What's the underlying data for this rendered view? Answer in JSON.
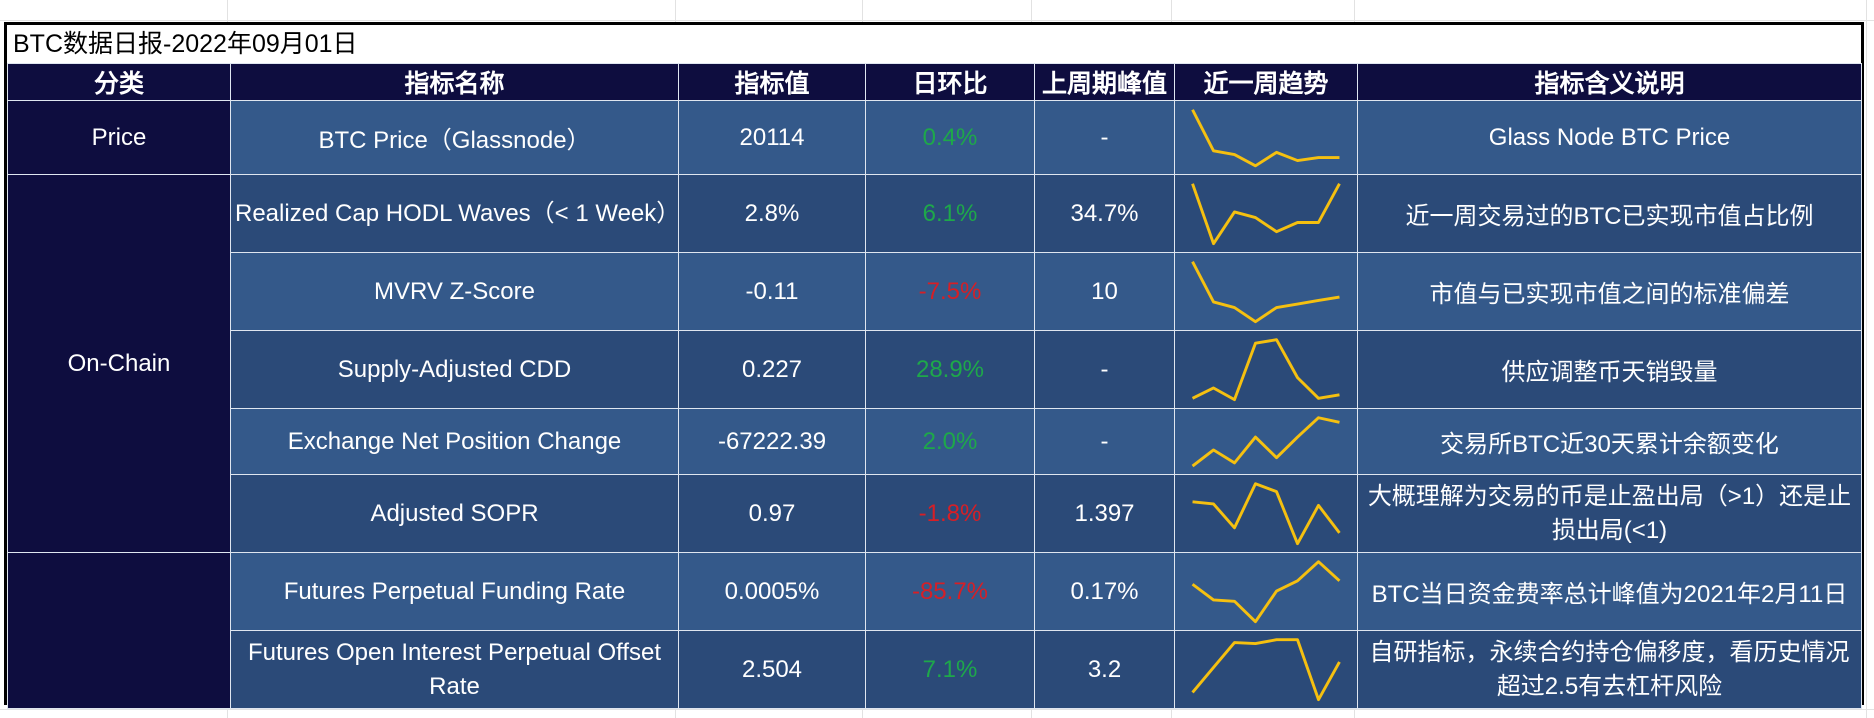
{
  "title": "BTC数据日报-2022年09月01日",
  "headers": {
    "category": "分类",
    "name": "指标名称",
    "value": "指标值",
    "dod": "日环比",
    "peak": "上周期峰值",
    "trend": "近一周趋势",
    "desc": "指标含义说明"
  },
  "categories": {
    "price": "Price",
    "onchain": "On-Chain",
    "futures": ""
  },
  "rows": [
    {
      "name": "BTC Price（Glassnode）",
      "value": "20114",
      "dod": "0.4%",
      "dod_sign": "pos",
      "peak": "-",
      "desc": "Glass Node BTC Price",
      "trend": [
        10,
        4.5,
        4,
        2.5,
        4.3,
        3.2,
        3.6,
        3.6
      ]
    },
    {
      "name": "Realized Cap HODL Waves（< 1 Week）",
      "value": "2.8%",
      "dod": "6.1%",
      "dod_sign": "pos",
      "peak": "34.7%",
      "desc": "近一周交易过的BTC已实现市值占比例",
      "trend": [
        9.5,
        1,
        5.5,
        4.7,
        2.7,
        4,
        4,
        9.5
      ]
    },
    {
      "name": "MVRV Z-Score",
      "value": "-0.11",
      "dod": "-7.5%",
      "dod_sign": "neg",
      "peak": "10",
      "desc": "市值与已实现市值之间的标准偏差",
      "trend": [
        9.5,
        3.8,
        3.0,
        1.0,
        3.0,
        3.5,
        4.0,
        4.5
      ]
    },
    {
      "name": "Supply-Adjusted CDD",
      "value": "0.227",
      "dod": "28.9%",
      "dod_sign": "pos",
      "peak": "-",
      "desc": "供应调整币天销毁量",
      "trend": [
        1.5,
        3,
        1.3,
        9.5,
        10,
        4.5,
        1.5,
        2
      ]
    },
    {
      "name": "Exchange Net Position Change",
      "value": "-67222.39",
      "dod": "2.0%",
      "dod_sign": "pos",
      "peak": "-",
      "desc": "交易所BTC近30天累计余额变化",
      "trend": [
        1,
        3.5,
        1.5,
        5.5,
        2.3,
        5.5,
        8.5,
        7.8
      ]
    },
    {
      "name": "Adjusted SOPR",
      "value": "0.97",
      "dod": "-1.8%",
      "dod_sign": "neg",
      "peak": "1.397",
      "desc": "大概理解为交易的币是止盈出局（>1）还是止损出局(<1)",
      "trend": [
        7.3,
        7.0,
        3.7,
        9.8,
        8.7,
        1.5,
        6.8,
        3
      ]
    },
    {
      "name": "Futures Perpetual Funding Rate",
      "value": "0.0005%",
      "dod": "-85.7%",
      "dod_sign": "neg",
      "peak": "0.17%",
      "desc": "BTC当日资金费率总计峰值为2021年2月11日",
      "trend": [
        6.5,
        4.2,
        4.0,
        1.0,
        5.5,
        7.0,
        9.8,
        7.0
      ]
    },
    {
      "name": "Futures Open Interest Perpetual Offset Rate",
      "value": "2.504",
      "dod": "7.1%",
      "dod_sign": "pos",
      "peak": "3.2",
      "desc": "自研指标，永续合约持仓偏移度，看历史情况超过2.5有去杠杆风险",
      "trend": [
        1.5,
        6,
        10.5,
        10.3,
        11,
        11,
        0.2,
        7
      ]
    }
  ],
  "colors": {
    "header_bg": "#0e0d3f",
    "cell_bg": "#2b4a78",
    "positive": "#1ea84a",
    "negative": "#d61f26",
    "trend_line": "#f5c010"
  }
}
